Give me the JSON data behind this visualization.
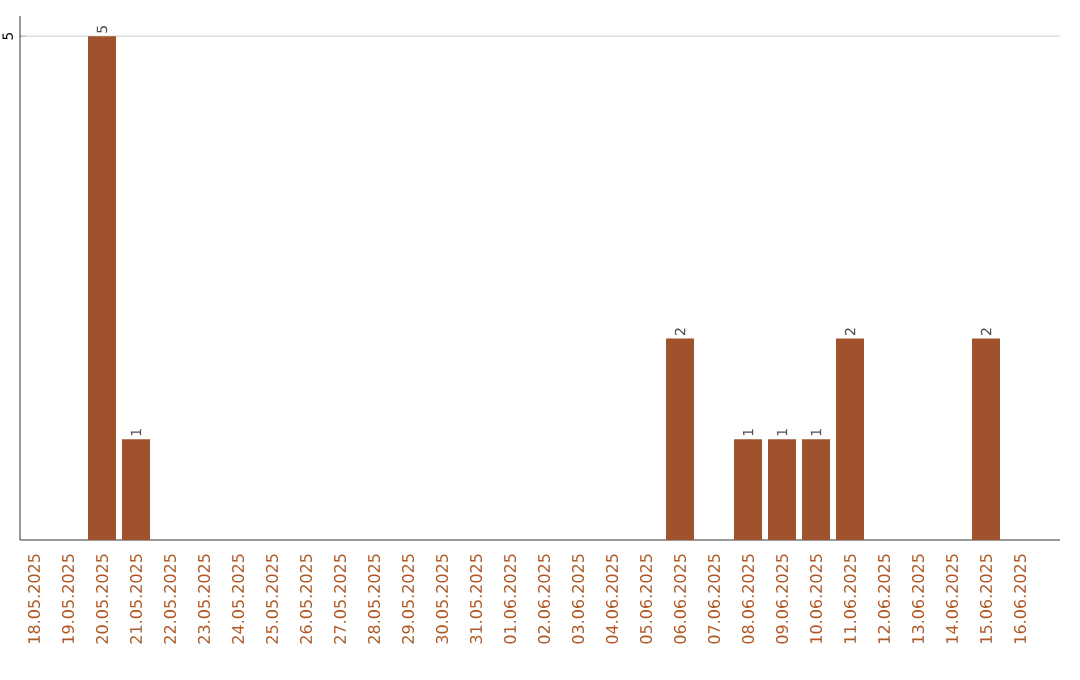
{
  "chart_data": {
    "type": "bar",
    "categories": [
      "18.05.2025",
      "19.05.2025",
      "20.05.2025",
      "21.05.2025",
      "22.05.2025",
      "23.05.2025",
      "24.05.2025",
      "25.05.2025",
      "26.05.2025",
      "27.05.2025",
      "28.05.2025",
      "29.05.2025",
      "30.05.2025",
      "31.05.2025",
      "01.06.2025",
      "02.06.2025",
      "03.06.2025",
      "04.06.2025",
      "05.06.2025",
      "06.06.2025",
      "07.06.2025",
      "08.06.2025",
      "09.06.2025",
      "10.06.2025",
      "11.06.2025",
      "12.06.2025",
      "13.06.2025",
      "14.06.2025",
      "15.06.2025",
      "16.06.2025"
    ],
    "values": [
      0,
      0,
      5,
      1,
      0,
      0,
      0,
      0,
      0,
      0,
      0,
      0,
      0,
      0,
      0,
      0,
      0,
      0,
      0,
      2,
      0,
      1,
      1,
      1,
      2,
      0,
      0,
      0,
      2,
      0
    ],
    "value_labels": [
      null,
      null,
      "5",
      "1",
      null,
      null,
      null,
      null,
      null,
      null,
      null,
      null,
      null,
      null,
      null,
      null,
      null,
      null,
      null,
      "2",
      null,
      "1",
      "1",
      "1",
      "2",
      null,
      null,
      null,
      "2",
      null
    ],
    "color": "#a0522d",
    "ylim": [
      0,
      5.2
    ],
    "yticks": [
      5
    ],
    "grid": "y"
  }
}
